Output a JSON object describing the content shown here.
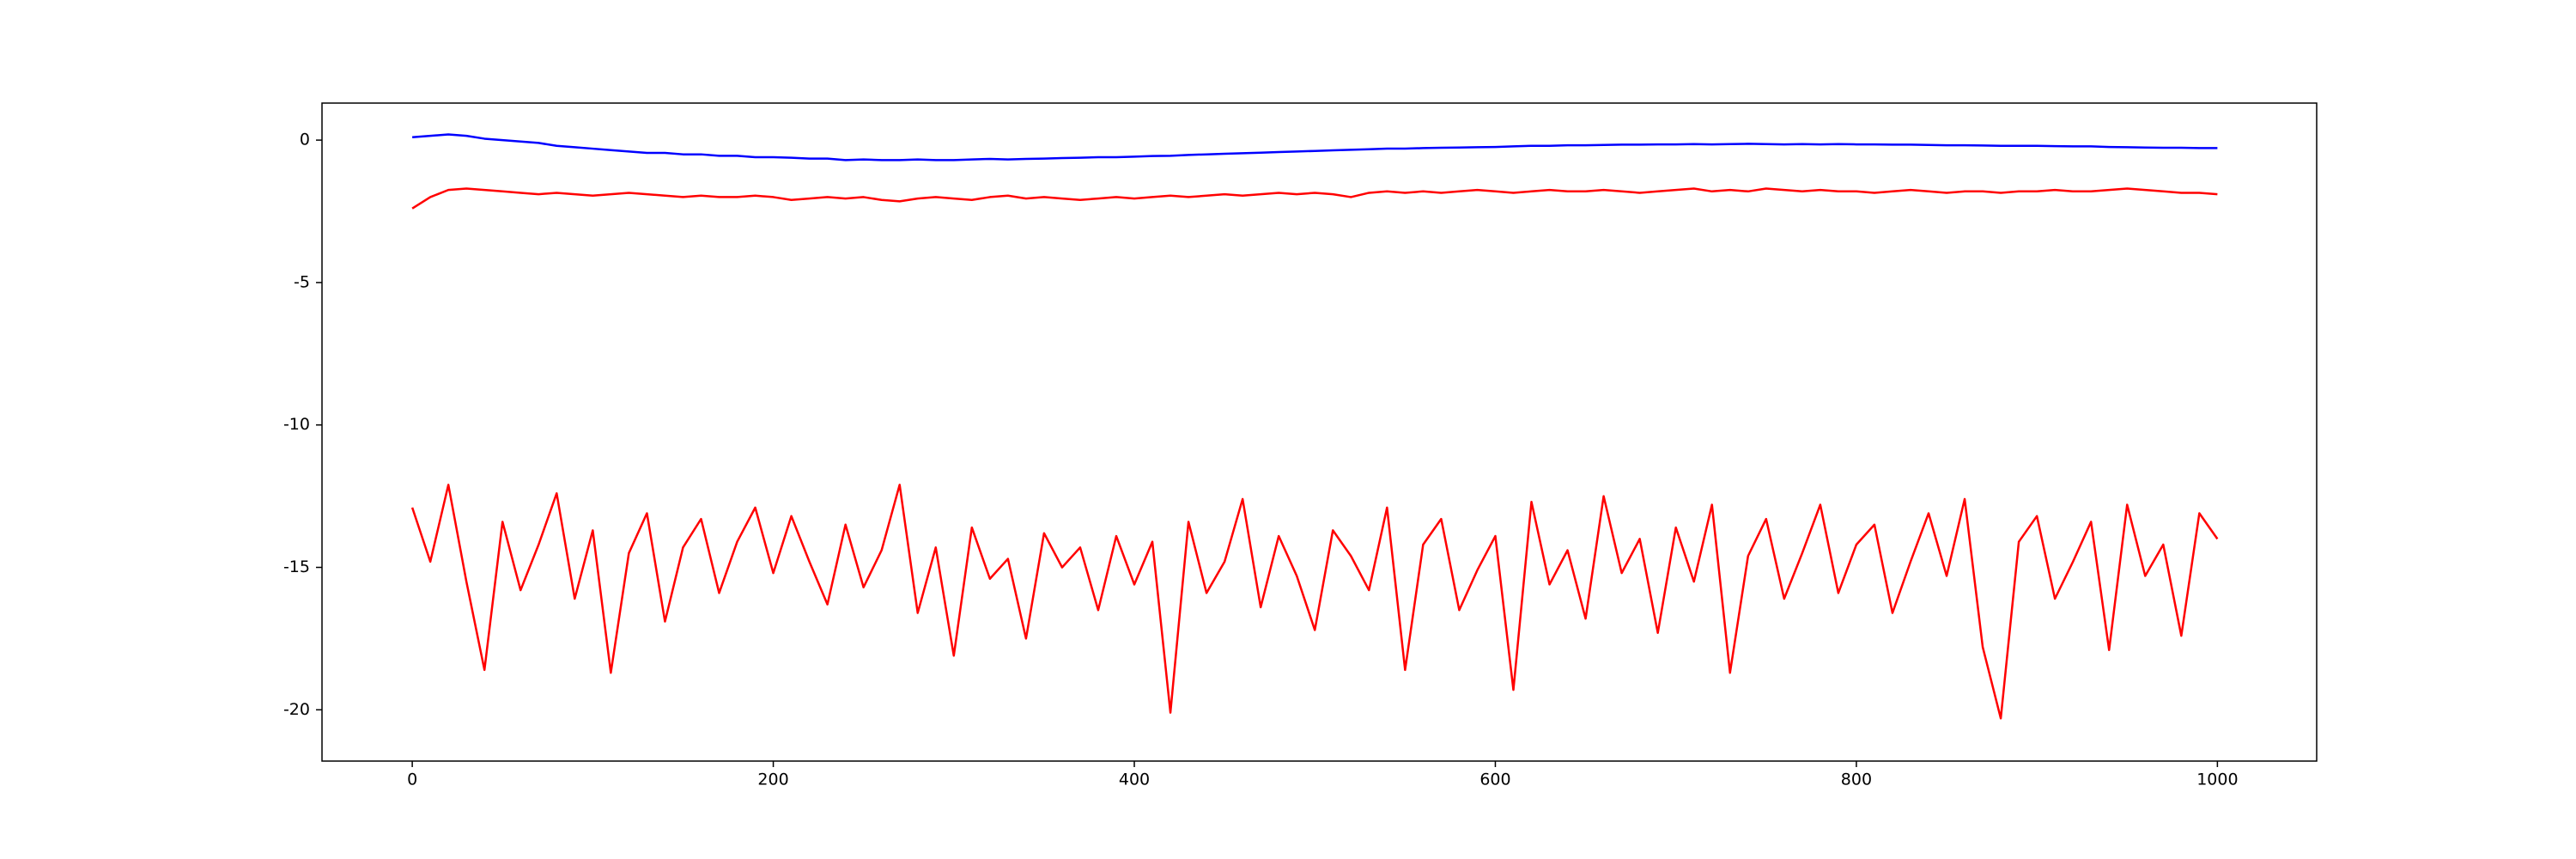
{
  "chart_data": {
    "type": "line",
    "x": [
      0,
      10,
      20,
      30,
      40,
      50,
      60,
      70,
      80,
      90,
      100,
      110,
      120,
      130,
      140,
      150,
      160,
      170,
      180,
      190,
      200,
      210,
      220,
      230,
      240,
      250,
      260,
      270,
      280,
      290,
      300,
      310,
      320,
      330,
      340,
      350,
      360,
      370,
      380,
      390,
      400,
      410,
      420,
      430,
      440,
      450,
      460,
      470,
      480,
      490,
      500,
      510,
      520,
      530,
      540,
      550,
      560,
      570,
      580,
      590,
      600,
      610,
      620,
      630,
      640,
      650,
      660,
      670,
      680,
      690,
      700,
      710,
      720,
      730,
      740,
      750,
      760,
      770,
      780,
      790,
      800,
      810,
      820,
      830,
      840,
      850,
      860,
      870,
      880,
      890,
      900,
      910,
      920,
      930,
      940,
      950,
      960,
      970,
      980,
      990,
      1000
    ],
    "series": [
      {
        "color": "#0000ff",
        "values": [
          0.1,
          0.15,
          0.2,
          0.15,
          0.05,
          0,
          -0.05,
          -0.1,
          -0.2,
          -0.25,
          -0.3,
          -0.35,
          -0.4,
          -0.45,
          -0.45,
          -0.5,
          -0.5,
          -0.55,
          -0.55,
          -0.6,
          -0.6,
          -0.62,
          -0.65,
          -0.65,
          -0.7,
          -0.68,
          -0.7,
          -0.7,
          -0.68,
          -0.7,
          -0.7,
          -0.68,
          -0.66,
          -0.68,
          -0.66,
          -0.65,
          -0.63,
          -0.62,
          -0.6,
          -0.6,
          -0.58,
          -0.56,
          -0.55,
          -0.52,
          -0.5,
          -0.48,
          -0.46,
          -0.44,
          -0.42,
          -0.4,
          -0.38,
          -0.36,
          -0.34,
          -0.32,
          -0.3,
          -0.3,
          -0.28,
          -0.27,
          -0.26,
          -0.25,
          -0.24,
          -0.22,
          -0.2,
          -0.2,
          -0.18,
          -0.18,
          -0.17,
          -0.16,
          -0.16,
          -0.15,
          -0.15,
          -0.14,
          -0.15,
          -0.14,
          -0.13,
          -0.14,
          -0.15,
          -0.14,
          -0.15,
          -0.14,
          -0.15,
          -0.15,
          -0.16,
          -0.16,
          -0.17,
          -0.18,
          -0.18,
          -0.19,
          -0.2,
          -0.2,
          -0.2,
          -0.21,
          -0.22,
          -0.22,
          -0.24,
          -0.25,
          -0.26,
          -0.27,
          -0.27,
          -0.28,
          -0.28
        ]
      },
      {
        "color": "#ff0000",
        "values": [
          -2.4,
          -2.0,
          -1.75,
          -1.7,
          -1.75,
          -1.8,
          -1.85,
          -1.9,
          -1.85,
          -1.9,
          -1.95,
          -1.9,
          -1.85,
          -1.9,
          -1.95,
          -2.0,
          -1.95,
          -2.0,
          -2.0,
          -1.95,
          -2.0,
          -2.1,
          -2.05,
          -2.0,
          -2.05,
          -2.0,
          -2.1,
          -2.15,
          -2.05,
          -2.0,
          -2.05,
          -2.1,
          -2.0,
          -1.95,
          -2.05,
          -2.0,
          -2.05,
          -2.1,
          -2.05,
          -2.0,
          -2.05,
          -2.0,
          -1.95,
          -2.0,
          -1.95,
          -1.9,
          -1.95,
          -1.9,
          -1.85,
          -1.9,
          -1.85,
          -1.9,
          -2.0,
          -1.85,
          -1.8,
          -1.85,
          -1.8,
          -1.85,
          -1.8,
          -1.75,
          -1.8,
          -1.85,
          -1.8,
          -1.75,
          -1.8,
          -1.8,
          -1.75,
          -1.8,
          -1.85,
          -1.8,
          -1.75,
          -1.7,
          -1.8,
          -1.75,
          -1.8,
          -1.7,
          -1.75,
          -1.8,
          -1.75,
          -1.8,
          -1.8,
          -1.85,
          -1.8,
          -1.75,
          -1.8,
          -1.85,
          -1.8,
          -1.8,
          -1.85,
          -1.8,
          -1.8,
          -1.75,
          -1.8,
          -1.8,
          -1.75,
          -1.7,
          -1.75,
          -1.8,
          -1.85,
          -1.85,
          -1.9
        ]
      },
      {
        "color": "#ff0000",
        "values": [
          -12.9,
          -14.8,
          -12.1,
          -15.5,
          -18.6,
          -13.4,
          -15.8,
          -14.2,
          -12.4,
          -16.1,
          -13.7,
          -18.7,
          -14.5,
          -13.1,
          -16.9,
          -14.3,
          -13.3,
          -15.9,
          -14.1,
          -12.9,
          -15.2,
          -13.2,
          -14.8,
          -16.3,
          -13.5,
          -15.7,
          -14.4,
          -12.1,
          -16.6,
          -14.3,
          -18.1,
          -13.6,
          -15.4,
          -14.7,
          -17.5,
          -13.8,
          -15.0,
          -14.3,
          -16.5,
          -13.9,
          -15.6,
          -14.1,
          -20.1,
          -13.4,
          -15.9,
          -14.8,
          -12.6,
          -16.4,
          -13.9,
          -15.3,
          -17.2,
          -13.7,
          -14.6,
          -15.8,
          -12.9,
          -18.6,
          -14.2,
          -13.3,
          -16.5,
          -15.1,
          -13.9,
          -19.3,
          -12.7,
          -15.6,
          -14.4,
          -16.8,
          -12.5,
          -15.2,
          -14.0,
          -17.3,
          -13.6,
          -15.5,
          -12.8,
          -18.7,
          -14.6,
          -13.3,
          -16.1,
          -14.5,
          -12.8,
          -15.9,
          -14.2,
          -13.5,
          -16.6,
          -14.8,
          -13.1,
          -15.3,
          -12.6,
          -17.8,
          -20.3,
          -14.1,
          -13.2,
          -16.1,
          -14.8,
          -13.4,
          -17.9,
          -12.8,
          -15.3,
          -14.2,
          -17.4,
          -13.1,
          -14.0
        ]
      }
    ],
    "xlim": [
      -50,
      1055
    ],
    "ylim": [
      -21.8,
      1.3
    ],
    "xticks": [
      0,
      200,
      400,
      600,
      800,
      1000
    ],
    "yticks": [
      -20,
      -15,
      -10,
      -5,
      0
    ]
  }
}
